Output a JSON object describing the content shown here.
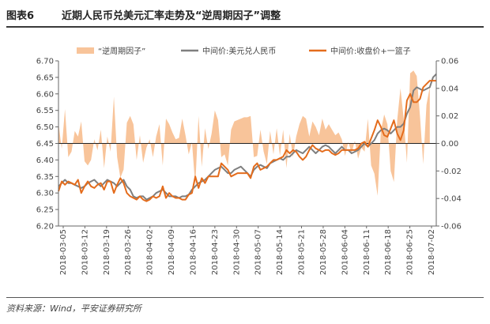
{
  "header": {
    "figure_number": "图表6",
    "title": "近期人民币兑美元汇率走势及“逆周期因子”调整"
  },
  "source": "资料来源：Wind，平安证券研究所",
  "colors": {
    "bar": "#f8c49a",
    "line_usd": "#7f7f7f",
    "line_basket": "#e46c1c",
    "axis": "#666666",
    "header_rule": "#3a3a3a"
  },
  "chart_data": {
    "type": "line",
    "legend": {
      "placement": "top",
      "entries": [
        "“逆周期因子”",
        "中间价:美元兑人民币",
        "中间价:收盘价+一篮子"
      ]
    },
    "x_tick_labels": [
      "2018-03-05",
      "2018-03-12",
      "2018-03-19",
      "2018-03-26",
      "2018-04-02",
      "2018-04-09",
      "2018-04-16",
      "2018-04-23",
      "2018-04-30",
      "2018-05-07",
      "2018-05-14",
      "2018-05-21",
      "2018-05-28",
      "2018-06-04",
      "2018-06-11",
      "2018-06-18",
      "2018-06-25",
      "2018-07-02"
    ],
    "y_left": {
      "ticks": [
        "6.20",
        "6.25",
        "6.30",
        "6.35",
        "6.40",
        "6.45",
        "6.50",
        "6.55",
        "6.60",
        "6.65",
        "6.70"
      ],
      "min": 6.2,
      "max": 6.7
    },
    "y_right": {
      "ticks": [
        "-0.06",
        "-0.04",
        "-0.02",
        "0.00",
        "0.02",
        "0.04",
        "0.06"
      ],
      "min": -0.06,
      "max": 0.06
    },
    "series": [
      {
        "name": "“逆周期因子”",
        "type": "area",
        "axis": "right",
        "values": [
          0.015,
          -0.004,
          0.025,
          -0.01,
          -0.006,
          0.009,
          0.005,
          0.016,
          -0.013,
          -0.016,
          -0.012,
          0.003,
          -0.005,
          0.01,
          -0.018,
          0.005,
          -0.006,
          0.034,
          -0.01,
          -0.025,
          -0.019,
          0.015,
          0.02,
          0.014,
          -0.012,
          0.006,
          -0.014,
          -0.003,
          0.003,
          -0.01,
          0.005,
          0.014,
          -0.016,
          0.018,
          0.014,
          0.008,
          0.003,
          0.004,
          0.018,
          0.006,
          -0.008,
          0.001,
          -0.031,
          0.02,
          -0.017,
          0.011,
          -0.004,
          0.007,
          0.024,
          0.017,
          -0.01,
          -0.008,
          -0.016,
          0.01,
          0.016,
          0.017,
          0.018,
          0.019,
          0.019,
          0.02,
          -0.01,
          -0.009,
          0.01,
          -0.006,
          -0.015,
          0.009,
          -0.008,
          0.011,
          -0.009,
          0.01,
          -0.018,
          0.007,
          -0.01,
          0.005,
          0.014,
          0.02,
          0.018,
          0.005,
          0.016,
          0.012,
          0.006,
          0.018,
          0.01,
          0.014,
          0.01,
          0.006,
          0.008,
          0.003,
          -0.009,
          0.001,
          -0.007,
          0.002,
          -0.011,
          -0.003,
          -0.006,
          0.018,
          -0.016,
          -0.022,
          -0.038,
          0.009,
          0.021,
          0.014,
          -0.02,
          -0.028,
          0.017,
          0.04,
          0.018,
          -0.014,
          0.051,
          0.053,
          0.049,
          0.02,
          -0.015,
          0.028,
          0.041
        ]
      },
      {
        "name": "中间价:美元兑人民币",
        "type": "line",
        "axis": "left",
        "values": [
          6.32,
          6.33,
          6.34,
          6.33,
          6.33,
          6.325,
          6.32,
          6.315,
          6.32,
          6.33,
          6.335,
          6.34,
          6.33,
          6.32,
          6.33,
          6.34,
          6.335,
          6.33,
          6.32,
          6.33,
          6.34,
          6.32,
          6.31,
          6.29,
          6.285,
          6.29,
          6.29,
          6.28,
          6.285,
          6.29,
          6.3,
          6.305,
          6.31,
          6.3,
          6.29,
          6.29,
          6.29,
          6.285,
          6.29,
          6.29,
          6.295,
          6.31,
          6.32,
          6.33,
          6.335,
          6.34,
          6.35,
          6.36,
          6.37,
          6.375,
          6.38,
          6.37,
          6.36,
          6.36,
          6.37,
          6.375,
          6.38,
          6.37,
          6.36,
          6.35,
          6.37,
          6.38,
          6.385,
          6.38,
          6.375,
          6.39,
          6.395,
          6.4,
          6.405,
          6.4,
          6.41,
          6.41,
          6.42,
          6.43,
          6.425,
          6.42,
          6.43,
          6.44,
          6.43,
          6.42,
          6.43,
          6.44,
          6.445,
          6.44,
          6.43,
          6.42,
          6.43,
          6.44,
          6.43,
          6.43,
          6.42,
          6.425,
          6.43,
          6.44,
          6.45,
          6.44,
          6.45,
          6.46,
          6.48,
          6.49,
          6.495,
          6.49,
          6.48,
          6.49,
          6.5,
          6.5,
          6.51,
          6.54,
          6.56,
          6.61,
          6.62,
          6.615,
          6.61,
          6.615,
          6.62,
          6.65,
          6.66
        ]
      },
      {
        "name": "中间价:收盘价+一篮子",
        "type": "line",
        "axis": "left",
        "values": [
          6.305,
          6.335,
          6.325,
          6.335,
          6.33,
          6.325,
          6.34,
          6.3,
          6.32,
          6.335,
          6.32,
          6.315,
          6.325,
          6.33,
          6.31,
          6.335,
          6.335,
          6.3,
          6.325,
          6.345,
          6.33,
          6.3,
          6.29,
          6.285,
          6.28,
          6.29,
          6.28,
          6.275,
          6.28,
          6.29,
          6.285,
          6.29,
          6.32,
          6.285,
          6.3,
          6.29,
          6.285,
          6.285,
          6.28,
          6.28,
          6.295,
          6.3,
          6.35,
          6.315,
          6.345,
          6.33,
          6.35,
          6.35,
          6.35,
          6.35,
          6.39,
          6.38,
          6.37,
          6.35,
          6.355,
          6.36,
          6.36,
          6.36,
          6.36,
          6.345,
          6.38,
          6.39,
          6.37,
          6.375,
          6.38,
          6.39,
          6.4,
          6.4,
          6.405,
          6.41,
          6.43,
          6.42,
          6.43,
          6.425,
          6.41,
          6.4,
          6.41,
          6.43,
          6.445,
          6.435,
          6.43,
          6.425,
          6.43,
          6.43,
          6.42,
          6.415,
          6.42,
          6.43,
          6.43,
          6.43,
          6.43,
          6.43,
          6.435,
          6.45,
          6.455,
          6.44,
          6.465,
          6.49,
          6.52,
          6.5,
          6.475,
          6.47,
          6.495,
          6.52,
          6.48,
          6.46,
          6.49,
          6.58,
          6.6,
          6.575,
          6.575,
          6.585,
          6.62,
          6.63,
          6.64,
          6.64,
          6.64
        ]
      }
    ]
  }
}
